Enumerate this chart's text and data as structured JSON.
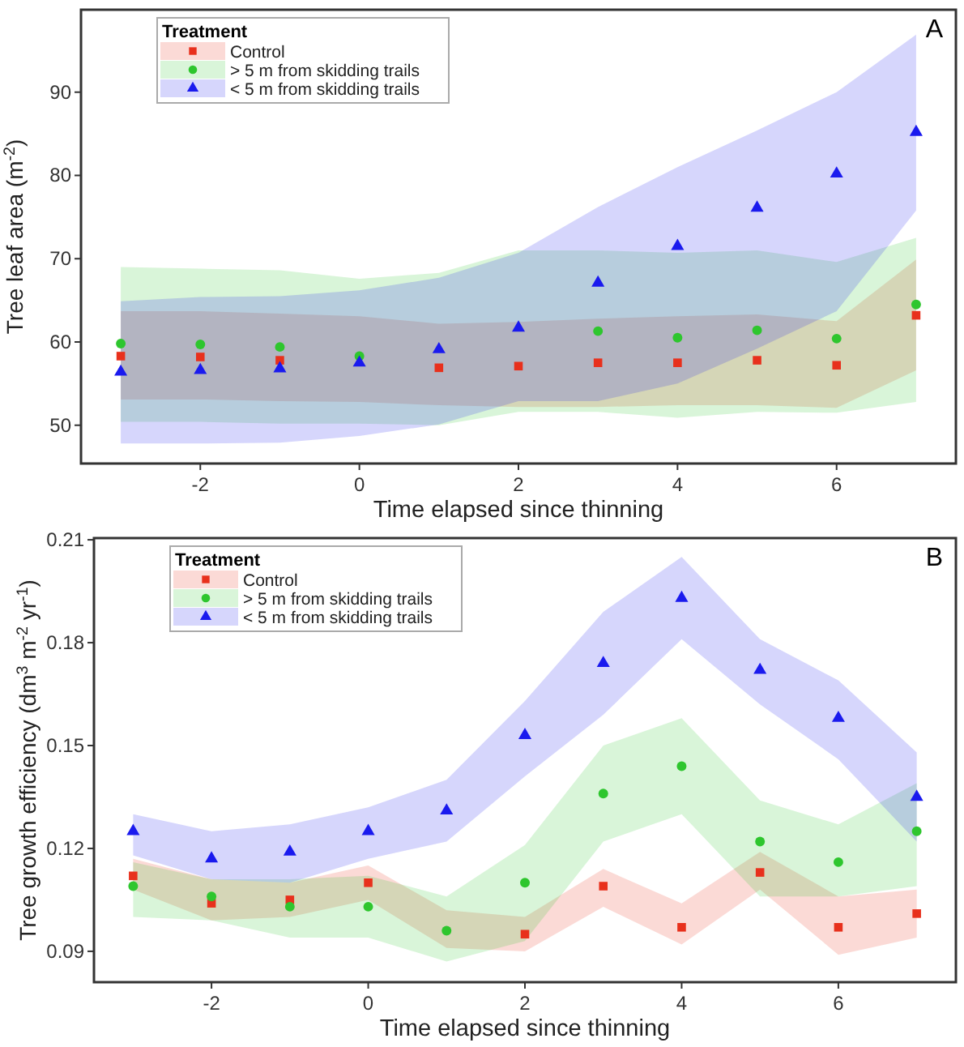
{
  "chart_data": [
    {
      "type": "scatter",
      "xlabel": "Time elapsed since thinning",
      "ylabel": "Tree leaf area (m$^{-2}$)",
      "legend_title": "Treatment",
      "legend": "top left",
      "annotations": [
        "A"
      ],
      "xlim": [
        -3.5,
        7.5
      ],
      "ylim": [
        45.4,
        99.9
      ],
      "xticks": [
        -2,
        0,
        2,
        4,
        6
      ],
      "yticks": [
        50,
        60,
        70,
        80,
        90
      ],
      "x": [
        -3,
        -2,
        -1,
        0,
        1,
        2,
        3,
        4,
        5,
        6,
        7
      ],
      "series": [
        {
          "name": "Control",
          "color": "#e8301c",
          "marker": "square",
          "values": [
            58.3,
            58.2,
            57.8,
            null,
            56.9,
            57.1,
            57.5,
            57.5,
            57.8,
            57.2,
            63.2
          ],
          "lower": [
            53.1,
            53.1,
            52.9,
            52.8,
            52.4,
            52.2,
            52.2,
            52.4,
            52.4,
            52.1,
            56.6
          ],
          "upper": [
            63.7,
            63.7,
            63.4,
            63.1,
            62.2,
            62.4,
            62.8,
            63.1,
            63.3,
            62.5,
            69.9
          ]
        },
        {
          "name": "> 5 m from skidding trails",
          "color": "#2ec62e",
          "marker": "circle",
          "values": [
            59.8,
            59.7,
            59.4,
            58.3,
            null,
            null,
            61.3,
            60.5,
            61.4,
            60.4,
            64.5
          ],
          "lower": [
            50.4,
            50.4,
            50.2,
            50.2,
            50.0,
            51.6,
            51.6,
            50.9,
            51.6,
            51.5,
            52.8
          ],
          "upper": [
            69.0,
            68.8,
            68.6,
            67.6,
            68.3,
            71.0,
            71.0,
            70.7,
            71.0,
            69.6,
            72.5
          ]
        },
        {
          "name": "< 5 m from skidding trails",
          "color": "#1a1aee",
          "marker": "triangle",
          "values": [
            56.4,
            56.6,
            56.8,
            57.5,
            59.1,
            61.7,
            67.1,
            71.5,
            76.1,
            80.2,
            85.2
          ],
          "lower": [
            47.8,
            47.8,
            47.9,
            48.7,
            50.1,
            52.9,
            52.9,
            55.0,
            59.2,
            63.7,
            75.8
          ],
          "upper": [
            64.9,
            65.4,
            65.5,
            66.2,
            67.7,
            70.7,
            76.2,
            81.0,
            85.4,
            90.0,
            96.9
          ]
        }
      ]
    },
    {
      "type": "scatter",
      "xlabel": "Time elapsed since thinning",
      "ylabel": "Tree growth efficiency (dm$^{3}$ m$^{-2}$ yr$^{-1}$)",
      "legend_title": "Treatment",
      "legend": "top left",
      "annotations": [
        "B"
      ],
      "xlim": [
        -3.5,
        7.5
      ],
      "ylim": [
        0.081,
        0.2105
      ],
      "xticks": [
        -2,
        0,
        2,
        4,
        6
      ],
      "yticks": [
        {
          "value": 0.09,
          "label": "0.09"
        },
        {
          "value": 0.12,
          "label": "0.12"
        },
        {
          "value": 0.15,
          "label": "0.15"
        },
        {
          "value": 0.18,
          "label": "0.18"
        },
        {
          "value": 0.21,
          "label": "0.21"
        }
      ],
      "x": [
        -3,
        -2,
        -1,
        0,
        1,
        2,
        3,
        4,
        5,
        6,
        7
      ],
      "series": [
        {
          "name": "Control",
          "color": "#e8301c",
          "marker": "square",
          "values": [
            0.112,
            0.104,
            0.105,
            0.11,
            null,
            0.095,
            0.109,
            0.097,
            0.113,
            0.097,
            0.101
          ],
          "lower": [
            0.108,
            0.099,
            0.1,
            0.105,
            0.091,
            0.09,
            0.103,
            0.092,
            0.108,
            0.089,
            0.094
          ],
          "upper": [
            0.117,
            0.111,
            0.11,
            0.115,
            0.102,
            0.1,
            0.114,
            0.104,
            0.119,
            0.106,
            0.108
          ]
        },
        {
          "name": "> 5 m from skidding trails",
          "color": "#2ec62e",
          "marker": "circle",
          "values": [
            0.109,
            0.106,
            0.103,
            0.103,
            0.096,
            0.11,
            0.136,
            0.144,
            0.122,
            0.116,
            0.125
          ],
          "lower": [
            0.1,
            0.099,
            0.094,
            0.094,
            0.087,
            0.093,
            0.122,
            0.13,
            0.106,
            0.106,
            0.109
          ],
          "upper": [
            0.116,
            0.111,
            0.111,
            0.112,
            0.106,
            0.121,
            0.15,
            0.158,
            0.134,
            0.127,
            0.139
          ]
        },
        {
          "name": "< 5 m from skidding trails",
          "color": "#1a1aee",
          "marker": "triangle",
          "values": [
            0.125,
            0.117,
            0.119,
            0.125,
            0.131,
            0.153,
            0.174,
            0.193,
            0.172,
            0.158,
            0.135
          ],
          "lower": [
            0.118,
            0.111,
            0.11,
            0.117,
            0.122,
            0.141,
            0.159,
            0.181,
            0.162,
            0.146,
            0.122
          ],
          "upper": [
            0.13,
            0.125,
            0.127,
            0.132,
            0.14,
            0.163,
            0.189,
            0.205,
            0.181,
            0.169,
            0.148
          ]
        }
      ]
    }
  ]
}
